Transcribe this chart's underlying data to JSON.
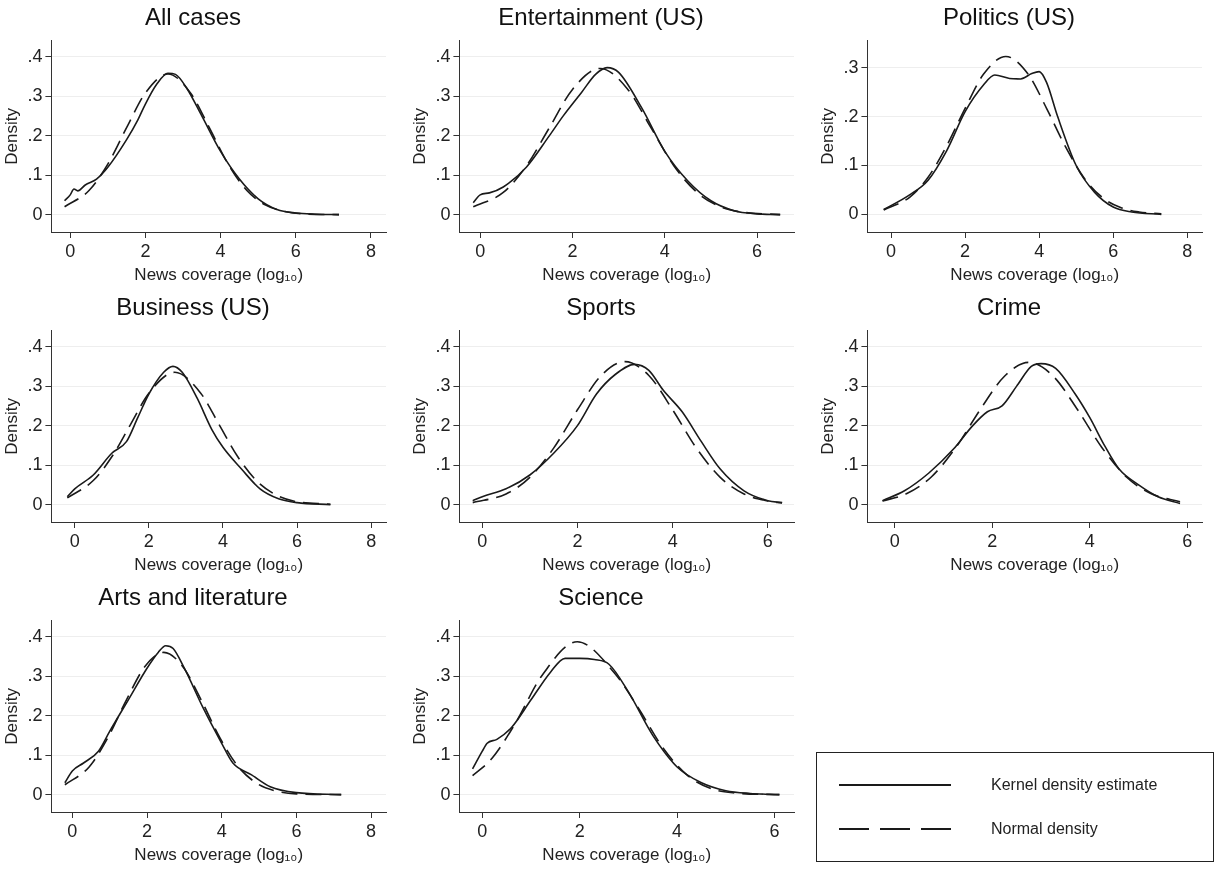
{
  "chart_data": [
    {
      "type": "line",
      "title": "All cases",
      "xlabel": "News coverage (log₁₀)",
      "ylabel": "Density",
      "xlim": [
        -0.5,
        8.4
      ],
      "ylim": [
        -0.044,
        0.44
      ],
      "xticks": [
        0,
        2,
        4,
        6,
        8
      ],
      "yticks": [
        {
          "value": 0,
          "label": "0"
        },
        {
          "value": 0.1,
          "label": ".1"
        },
        {
          "value": 0.2,
          "label": ".2"
        },
        {
          "value": 0.3,
          "label": ".3"
        },
        {
          "value": 0.4,
          "label": ".4"
        }
      ],
      "grid": "y",
      "marker": "none",
      "series": [
        {
          "color": "#1a1a1a",
          "line_style": "solid",
          "x": [
            -0.15,
            0,
            0.1,
            0.2,
            0.4,
            0.7,
            1,
            1.5,
            1.8,
            2,
            2.3,
            2.6,
            2.8,
            3.1,
            3.5,
            4,
            4.5,
            5,
            5.5,
            6,
            6.5,
            7.15
          ],
          "values": [
            0.035,
            0.05,
            0.065,
            0.06,
            0.075,
            0.09,
            0.12,
            0.19,
            0.24,
            0.28,
            0.33,
            0.358,
            0.355,
            0.32,
            0.25,
            0.16,
            0.09,
            0.04,
            0.013,
            0.004,
            0.001,
            0
          ]
        },
        {
          "color": "#1a1a1a",
          "line_style": "dashed",
          "x": [
            -0.15,
            0.5,
            1,
            1.5,
            2,
            2.6,
            3.2,
            3.7,
            4.2,
            4.7,
            5.2,
            5.7,
            6.2,
            7.15
          ],
          "values": [
            0.02,
            0.061,
            0.128,
            0.22,
            0.308,
            0.356,
            0.308,
            0.22,
            0.128,
            0.061,
            0.024,
            0.008,
            0.002,
            0
          ]
        }
      ]
    },
    {
      "type": "line",
      "title": "Entertainment (US)",
      "xlabel": "News coverage (log₁₀)",
      "ylabel": "Density",
      "xlim": [
        -0.45,
        6.8
      ],
      "ylim": [
        -0.044,
        0.44
      ],
      "xticks": [
        0,
        2,
        4,
        6
      ],
      "yticks": [
        {
          "value": 0,
          "label": "0"
        },
        {
          "value": 0.1,
          "label": ".1"
        },
        {
          "value": 0.2,
          "label": ".2"
        },
        {
          "value": 0.3,
          "label": ".3"
        },
        {
          "value": 0.4,
          "label": ".4"
        }
      ],
      "grid": "y",
      "marker": "none",
      "series": [
        {
          "color": "#1a1a1a",
          "line_style": "solid",
          "x": [
            -0.15,
            0,
            0.2,
            0.5,
            1,
            1.5,
            1.8,
            2.2,
            2.5,
            2.75,
            3,
            3.5,
            4,
            4.5,
            5,
            5.5,
            6,
            6.5
          ],
          "values": [
            0.03,
            0.05,
            0.055,
            0.07,
            0.12,
            0.2,
            0.25,
            0.31,
            0.355,
            0.372,
            0.36,
            0.27,
            0.16,
            0.085,
            0.035,
            0.01,
            0.002,
            0
          ]
        },
        {
          "color": "#1a1a1a",
          "line_style": "dashed",
          "x": [
            -0.15,
            0.5,
            1,
            1.5,
            2,
            2.6,
            3.2,
            3.7,
            4.2,
            4.7,
            5.2,
            5.7,
            6.5
          ],
          "values": [
            0.02,
            0.056,
            0.123,
            0.22,
            0.317,
            0.37,
            0.317,
            0.22,
            0.123,
            0.056,
            0.02,
            0.006,
            0
          ]
        }
      ]
    },
    {
      "type": "line",
      "title": "Politics (US)",
      "xlabel": "News coverage (log₁₀)",
      "ylabel": "Density",
      "xlim": [
        -0.64,
        8.4
      ],
      "ylim": [
        -0.036,
        0.355
      ],
      "xticks": [
        0,
        2,
        4,
        6,
        8
      ],
      "yticks": [
        {
          "value": 0,
          "label": "0"
        },
        {
          "value": 0.1,
          "label": ".1"
        },
        {
          "value": 0.2,
          "label": ".2"
        },
        {
          "value": 0.3,
          "label": ".3"
        }
      ],
      "grid": "y",
      "marker": "none",
      "series": [
        {
          "color": "#1a1a1a",
          "line_style": "solid",
          "x": [
            -0.2,
            0.5,
            1,
            1.5,
            2,
            2.5,
            2.8,
            3.2,
            3.5,
            3.8,
            4,
            4.2,
            4.5,
            5,
            5.5,
            6,
            6.5,
            7.3
          ],
          "values": [
            0.01,
            0.04,
            0.07,
            0.13,
            0.21,
            0.265,
            0.285,
            0.278,
            0.277,
            0.288,
            0.292,
            0.27,
            0.2,
            0.1,
            0.045,
            0.015,
            0.005,
            0
          ]
        },
        {
          "color": "#1a1a1a",
          "line_style": "dashed",
          "x": [
            -0.2,
            0.5,
            1,
            1.5,
            2,
            2.5,
            3.1,
            3.7,
            4.2,
            4.7,
            5.2,
            5.7,
            6.2,
            6.7,
            7.3
          ],
          "values": [
            0.009,
            0.035,
            0.076,
            0.14,
            0.217,
            0.287,
            0.323,
            0.287,
            0.217,
            0.14,
            0.076,
            0.035,
            0.014,
            0.005,
            0.001
          ]
        }
      ]
    },
    {
      "type": "line",
      "title": "Business (US)",
      "xlabel": "News coverage (log₁₀)",
      "ylabel": "Density",
      "xlim": [
        -0.63,
        8.4
      ],
      "ylim": [
        -0.044,
        0.44
      ],
      "xticks": [
        0,
        2,
        4,
        6,
        8
      ],
      "yticks": [
        {
          "value": 0,
          "label": "0"
        },
        {
          "value": 0.1,
          "label": ".1"
        },
        {
          "value": 0.2,
          "label": ".2"
        },
        {
          "value": 0.3,
          "label": ".3"
        },
        {
          "value": 0.4,
          "label": ".4"
        }
      ],
      "grid": "y",
      "marker": "none",
      "series": [
        {
          "color": "#1a1a1a",
          "line_style": "solid",
          "x": [
            -0.2,
            0,
            0.5,
            1,
            1.4,
            1.7,
            2,
            2.4,
            2.65,
            2.9,
            3.3,
            3.7,
            4,
            4.5,
            5,
            5.5,
            6,
            6.9
          ],
          "values": [
            0.02,
            0.04,
            0.075,
            0.13,
            0.16,
            0.22,
            0.28,
            0.335,
            0.35,
            0.335,
            0.27,
            0.19,
            0.145,
            0.09,
            0.04,
            0.015,
            0.005,
            0
          ]
        },
        {
          "color": "#1a1a1a",
          "line_style": "dashed",
          "x": [
            -0.2,
            0.5,
            1,
            1.5,
            2,
            2.7,
            3.4,
            3.9,
            4.4,
            4.9,
            5.4,
            5.9,
            6.9
          ],
          "values": [
            0.017,
            0.061,
            0.121,
            0.202,
            0.282,
            0.335,
            0.282,
            0.202,
            0.121,
            0.061,
            0.026,
            0.009,
            0.001
          ]
        }
      ]
    },
    {
      "type": "line",
      "title": "Sports",
      "xlabel": "News coverage (log₁₀)",
      "ylabel": "Density",
      "xlim": [
        -0.48,
        6.55
      ],
      "ylim": [
        -0.044,
        0.44
      ],
      "xticks": [
        0,
        2,
        4,
        6
      ],
      "yticks": [
        {
          "value": 0,
          "label": "0"
        },
        {
          "value": 0.1,
          "label": ".1"
        },
        {
          "value": 0.2,
          "label": ".2"
        },
        {
          "value": 0.3,
          "label": ".3"
        },
        {
          "value": 0.4,
          "label": ".4"
        }
      ],
      "grid": "y",
      "marker": "none",
      "series": [
        {
          "color": "#1a1a1a",
          "line_style": "solid",
          "x": [
            -0.2,
            0,
            0.5,
            1,
            1.5,
            2,
            2.4,
            2.8,
            3.2,
            3.5,
            3.8,
            4.2,
            4.6,
            5,
            5.5,
            6,
            6.3
          ],
          "values": [
            0.01,
            0.02,
            0.04,
            0.075,
            0.13,
            0.2,
            0.28,
            0.33,
            0.355,
            0.34,
            0.29,
            0.235,
            0.16,
            0.09,
            0.035,
            0.01,
            0.005
          ]
        },
        {
          "color": "#1a1a1a",
          "line_style": "dashed",
          "x": [
            -0.2,
            0.5,
            1,
            1.5,
            2,
            2.5,
            3,
            3.5,
            4,
            4.5,
            5,
            5.5,
            6,
            6.3
          ],
          "values": [
            0.005,
            0.027,
            0.069,
            0.143,
            0.24,
            0.327,
            0.362,
            0.327,
            0.24,
            0.143,
            0.069,
            0.027,
            0.009,
            0.004
          ]
        }
      ]
    },
    {
      "type": "line",
      "title": "Crime",
      "xlabel": "News coverage (log₁₀)",
      "ylabel": "Density",
      "xlim": [
        -0.56,
        6.3
      ],
      "ylim": [
        -0.044,
        0.44
      ],
      "xticks": [
        0,
        2,
        4,
        6
      ],
      "yticks": [
        {
          "value": 0,
          "label": "0"
        },
        {
          "value": 0.1,
          "label": ".1"
        },
        {
          "value": 0.2,
          "label": ".2"
        },
        {
          "value": 0.3,
          "label": ".3"
        },
        {
          "value": 0.4,
          "label": ".4"
        }
      ],
      "grid": "y",
      "marker": "none",
      "series": [
        {
          "color": "#1a1a1a",
          "line_style": "solid",
          "x": [
            -0.25,
            0.2,
            0.7,
            1.2,
            1.6,
            1.9,
            2.2,
            2.5,
            2.8,
            3,
            3.3,
            3.7,
            4,
            4.3,
            4.6,
            5,
            5.4,
            5.85
          ],
          "values": [
            0.01,
            0.035,
            0.08,
            0.14,
            0.2,
            0.235,
            0.25,
            0.3,
            0.35,
            0.357,
            0.345,
            0.28,
            0.22,
            0.15,
            0.09,
            0.05,
            0.02,
            0.003
          ]
        },
        {
          "color": "#1a1a1a",
          "line_style": "dashed",
          "x": [
            -0.25,
            0.25,
            0.75,
            1.25,
            1.75,
            2.25,
            2.75,
            3.25,
            3.75,
            4.25,
            4.75,
            5.25,
            5.85
          ],
          "values": [
            0.009,
            0.028,
            0.07,
            0.144,
            0.24,
            0.325,
            0.36,
            0.325,
            0.24,
            0.144,
            0.07,
            0.028,
            0.007
          ]
        }
      ]
    },
    {
      "type": "line",
      "title": "Arts and literature",
      "xlabel": "News coverage (log₁₀)",
      "ylabel": "Density",
      "xlim": [
        -0.56,
        8.4
      ],
      "ylim": [
        -0.044,
        0.44
      ],
      "xticks": [
        0,
        2,
        4,
        6,
        8
      ],
      "yticks": [
        {
          "value": 0,
          "label": "0"
        },
        {
          "value": 0.1,
          "label": ".1"
        },
        {
          "value": 0.2,
          "label": ".2"
        },
        {
          "value": 0.3,
          "label": ".3"
        },
        {
          "value": 0.4,
          "label": ".4"
        }
      ],
      "grid": "y",
      "marker": "none",
      "series": [
        {
          "color": "#1a1a1a",
          "line_style": "solid",
          "x": [
            -0.2,
            0,
            0.3,
            0.7,
            1,
            1.5,
            2,
            2.3,
            2.5,
            2.7,
            3,
            3.5,
            4,
            4.3,
            4.8,
            5.3,
            6,
            7.2
          ],
          "values": [
            0.03,
            0.06,
            0.08,
            0.11,
            0.16,
            0.24,
            0.32,
            0.36,
            0.377,
            0.37,
            0.32,
            0.22,
            0.13,
            0.08,
            0.05,
            0.02,
            0.005,
            0
          ]
        },
        {
          "color": "#1a1a1a",
          "line_style": "dashed",
          "x": [
            -0.2,
            0.45,
            0.95,
            1.45,
            1.95,
            2.45,
            2.95,
            3.45,
            3.95,
            4.45,
            4.95,
            5.45,
            6,
            7.2
          ],
          "values": [
            0.025,
            0.07,
            0.144,
            0.24,
            0.325,
            0.36,
            0.325,
            0.24,
            0.144,
            0.07,
            0.028,
            0.009,
            0.002,
            0
          ]
        }
      ]
    },
    {
      "type": "line",
      "title": "Science",
      "xlabel": "News coverage (log₁₀)",
      "ylabel": "Density",
      "xlim": [
        -0.47,
        6.4
      ],
      "ylim": [
        -0.044,
        0.44
      ],
      "xticks": [
        0,
        2,
        4,
        6
      ],
      "yticks": [
        {
          "value": 0,
          "label": "0"
        },
        {
          "value": 0.1,
          "label": ".1"
        },
        {
          "value": 0.2,
          "label": ".2"
        },
        {
          "value": 0.3,
          "label": ".3"
        },
        {
          "value": 0.4,
          "label": ".4"
        }
      ],
      "grid": "y",
      "marker": "none",
      "legend": "right",
      "series": [
        {
          "name": "Kernel density estimate",
          "color": "#1a1a1a",
          "line_style": "solid",
          "x": [
            -0.2,
            0,
            0.1,
            0.3,
            0.6,
            1,
            1.4,
            1.7,
            2,
            2.3,
            2.6,
            3,
            3.5,
            4,
            4.5,
            5,
            5.5,
            6.1
          ],
          "values": [
            0.065,
            0.11,
            0.13,
            0.14,
            0.17,
            0.24,
            0.31,
            0.345,
            0.345,
            0.342,
            0.33,
            0.26,
            0.15,
            0.07,
            0.03,
            0.01,
            0.003,
            0
          ]
        },
        {
          "name": "Normal density",
          "color": "#1a1a1a",
          "line_style": "dashed",
          "x": [
            -0.2,
            0.2,
            0.7,
            1.2,
            1.95,
            2.7,
            3.2,
            3.7,
            4.2,
            4.7,
            5.2,
            6.1
          ],
          "values": [
            0.048,
            0.092,
            0.185,
            0.297,
            0.387,
            0.31,
            0.22,
            0.12,
            0.05,
            0.015,
            0.004,
            0
          ]
        }
      ]
    }
  ]
}
